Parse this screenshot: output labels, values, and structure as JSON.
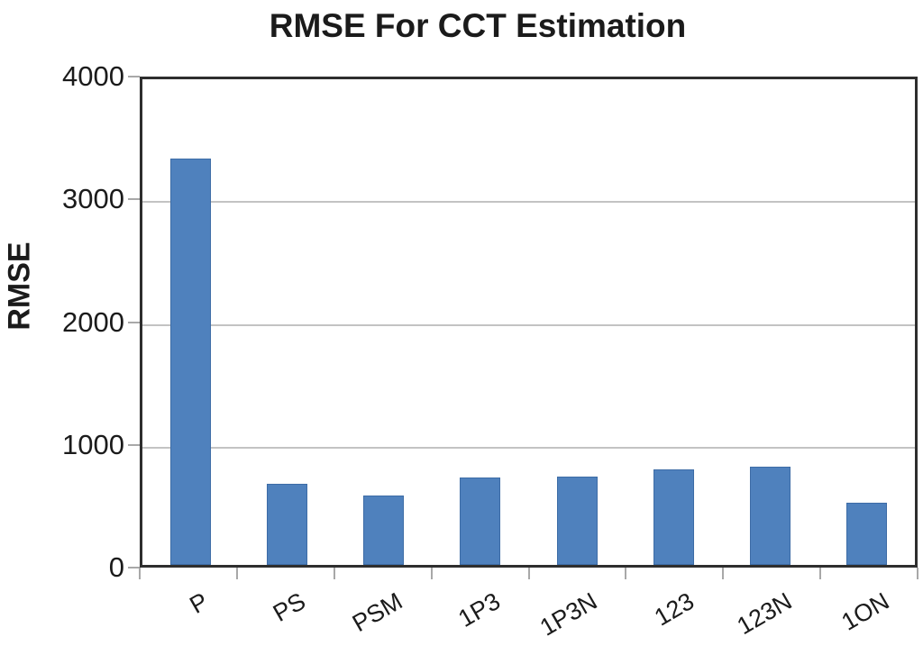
{
  "title": "RMSE For CCT Estimation",
  "chart_data": {
    "type": "bar",
    "title": "RMSE For CCT Estimation",
    "categories": [
      "P",
      "PS",
      "PSM",
      "1P3",
      "1P3N",
      "123",
      "123N",
      "1ON"
    ],
    "values": [
      3350,
      670,
      575,
      720,
      730,
      790,
      810,
      510
    ],
    "xlabel": "",
    "ylabel": "RMSE",
    "ylim": [
      0,
      4000
    ],
    "yticks": [
      "0",
      "1000",
      "2000",
      "3000",
      "4000"
    ],
    "grid": true,
    "legend_position": "none",
    "bar_color": "#4f81bd"
  },
  "colors": {
    "bar": "#4f81bd",
    "bar_border": "#3d6ca6",
    "gridline": "#c3c3c3",
    "axis_border": "#2e2e2e",
    "tick": "#a8a8a8",
    "text": "#1b1b1b",
    "background": "#ffffff"
  }
}
